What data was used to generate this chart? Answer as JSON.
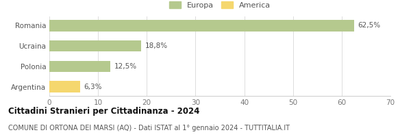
{
  "categories": [
    "Romania",
    "Ucraina",
    "Polonia",
    "Argentina"
  ],
  "values": [
    62.5,
    18.8,
    12.5,
    6.3
  ],
  "labels": [
    "62,5%",
    "18,8%",
    "12,5%",
    "6,3%"
  ],
  "colors": [
    "#b5c98e",
    "#b5c98e",
    "#b5c98e",
    "#f5d76e"
  ],
  "legend": [
    {
      "label": "Europa",
      "color": "#b5c98e"
    },
    {
      "label": "America",
      "color": "#f5d76e"
    }
  ],
  "xlim": [
    0,
    70
  ],
  "xticks": [
    0,
    10,
    20,
    30,
    40,
    50,
    60,
    70
  ],
  "title": "Cittadini Stranieri per Cittadinanza - 2024",
  "subtitle": "COMUNE DI ORTONA DEI MARSI (AQ) - Dati ISTAT al 1° gennaio 2024 - TUTTITALIA.IT",
  "title_fontsize": 8.5,
  "subtitle_fontsize": 7,
  "label_fontsize": 7.5,
  "tick_fontsize": 7.5,
  "legend_fontsize": 8,
  "bar_height": 0.55,
  "background_color": "#ffffff"
}
